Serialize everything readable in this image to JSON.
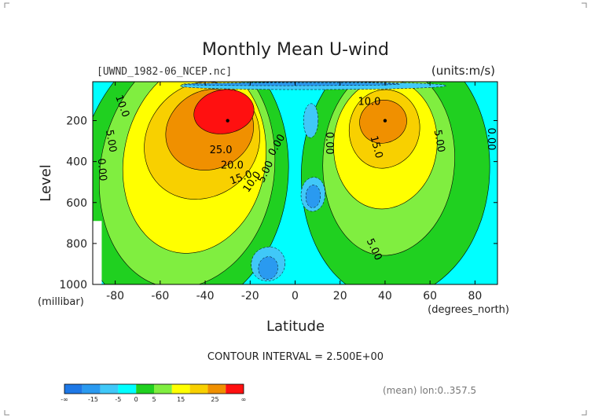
{
  "figure": {
    "title": "Monthly Mean U-wind",
    "source_label": "[UWND_1982-06_NCEP.nc]",
    "units_label": "(units:m/s)",
    "contour_interval_text": "CONTOUR INTERVAL = 2.500E+00",
    "footer_note": "(mean) lon:0..357.5"
  },
  "chart_data": {
    "type": "heatmap",
    "title": "Monthly Mean U-wind",
    "xlabel": "Latitude",
    "x_unit_label": "(degrees_north)",
    "ylabel": "Level",
    "y_unit_label": "(millibar)",
    "xlim": [
      -90,
      90
    ],
    "ylim": [
      1000,
      10
    ],
    "x_ticks": [
      "-80",
      "-60",
      "-40",
      "-20",
      "0",
      "20",
      "40",
      "60",
      "80"
    ],
    "x_tick_values": [
      -80,
      -60,
      -40,
      -20,
      0,
      20,
      40,
      60,
      80
    ],
    "y_ticks": [
      "200",
      "400",
      "600",
      "800",
      "1000"
    ],
    "y_tick_values": [
      200,
      400,
      600,
      800,
      1000
    ],
    "jets": [
      {
        "lat": -30,
        "level": 200,
        "max": 35
      },
      {
        "lat": 40,
        "level": 200,
        "max": 25
      }
    ],
    "contour_labels": [
      {
        "text": "10.0",
        "lat": -77,
        "level": 130,
        "rotate": 70
      },
      {
        "text": "5.00",
        "lat": -82,
        "level": 300,
        "rotate": 80
      },
      {
        "text": "0.00",
        "lat": -86,
        "level": 440,
        "rotate": 85
      },
      {
        "text": "25.0",
        "lat": -33,
        "level": 345,
        "rotate": 0
      },
      {
        "text": "20.0",
        "lat": -28,
        "level": 420,
        "rotate": 0
      },
      {
        "text": "15.0",
        "lat": -24,
        "level": 480,
        "rotate": -20
      },
      {
        "text": "10.0",
        "lat": -19,
        "level": 500,
        "rotate": -55
      },
      {
        "text": "5.00",
        "lat": -13,
        "level": 450,
        "rotate": -65
      },
      {
        "text": "0.00",
        "lat": -8,
        "level": 320,
        "rotate": -60
      },
      {
        "text": "10.0",
        "lat": 33,
        "level": 110,
        "rotate": 0
      },
      {
        "text": "15.0",
        "lat": 36,
        "level": 330,
        "rotate": 75
      },
      {
        "text": "5.00",
        "lat": 64,
        "level": 300,
        "rotate": 80
      },
      {
        "text": "0.00",
        "lat": 15,
        "level": 310,
        "rotate": 90
      },
      {
        "text": "0.00",
        "lat": 87,
        "level": 290,
        "rotate": 90
      },
      {
        "text": "5.00",
        "lat": 35,
        "level": 830,
        "rotate": 65
      }
    ],
    "colorbar": {
      "labels": [
        "-∞",
        "-15",
        "-5",
        "0",
        "5",
        "15",
        "25",
        "∞"
      ],
      "colors": [
        "#1e78e6",
        "#2a9af0",
        "#40c8f8",
        "#00ffff",
        "#20d020",
        "#80ee40",
        "#ffff00",
        "#f8d000",
        "#f09000",
        "#ff1010"
      ]
    },
    "field_colors": {
      "neg2": "#2a9af0",
      "neg1": "#40c8f8",
      "zero": "#00ffff",
      "pos1": "#20d020",
      "pos2": "#80ee40",
      "pos3": "#ffff00",
      "pos4": "#f8d000",
      "pos5": "#f09000",
      "pos6": "#ff1010"
    }
  }
}
